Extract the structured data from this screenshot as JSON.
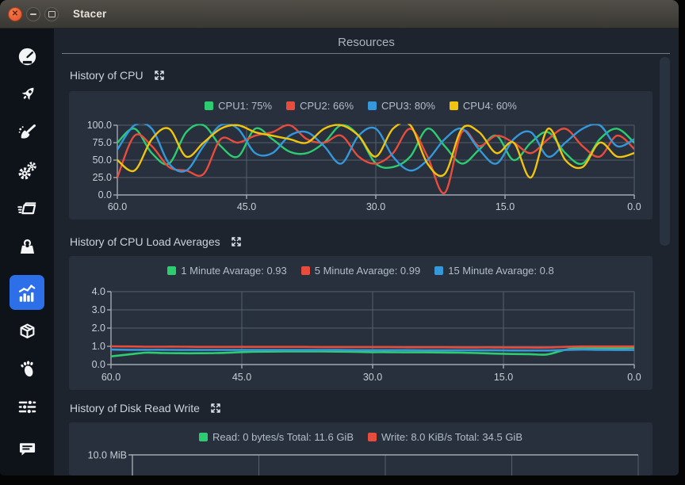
{
  "titlebar": {
    "title": "Stacer",
    "controls": [
      {
        "name": "close",
        "glyph": "✕"
      },
      {
        "name": "minimize"
      },
      {
        "name": "maximize"
      }
    ]
  },
  "sidebar": {
    "active": "resources",
    "items": [
      {
        "icon": "dashboard-gauge-icon"
      },
      {
        "icon": "startup-apps-rocket-icon"
      },
      {
        "icon": "system-cleaner-broom-icon"
      },
      {
        "icon": "services-gears-icon"
      },
      {
        "icon": "processes-icon"
      },
      {
        "icon": "uninstaller-icon"
      },
      {
        "icon": "resources-chart-icon"
      },
      {
        "icon": "package-box-icon"
      },
      {
        "icon": "gnome-settings-foot-icon"
      },
      {
        "icon": "settings-sliders-icon"
      },
      {
        "icon": "feedback-comment-icon"
      }
    ]
  },
  "header": {
    "title": "Resources"
  },
  "sections": [
    {
      "title": "History of CPU"
    },
    {
      "title": "History of CPU Load Averages"
    },
    {
      "title": "History of Disk Read Write"
    }
  ],
  "colors": {
    "accent": "#2c6fe9",
    "green": "#2ecc71",
    "red": "#e74c3c",
    "blue": "#3498db",
    "yellow": "#f1c40f"
  },
  "chart_data": [
    {
      "type": "line",
      "title": "History of CPU",
      "legend": [
        {
          "label": "CPU1: 75%",
          "color": "#2ecc71"
        },
        {
          "label": "CPU2: 66%",
          "color": "#e74c3c"
        },
        {
          "label": "CPU3: 80%",
          "color": "#3498db"
        },
        {
          "label": "CPU4: 60%",
          "color": "#f1c40f"
        }
      ],
      "xlim": [
        60,
        0
      ],
      "ylim": [
        0,
        100
      ],
      "x_tick_values": [
        60,
        45,
        30,
        15,
        0
      ],
      "x_tick_labels": [
        "60.0",
        "45.0",
        "30.0",
        "15.0",
        "0.0"
      ],
      "y_tick_values": [
        0,
        25,
        50,
        75,
        100
      ],
      "y_tick_labels": [
        "0.0",
        "25.0",
        "50.0",
        "75.0",
        "100.0"
      ],
      "x": [
        60,
        58,
        56,
        54,
        52,
        50,
        48,
        46,
        44,
        42,
        40,
        38,
        36,
        34,
        32,
        30,
        28,
        26,
        24,
        22,
        20,
        18,
        16,
        14,
        12,
        10,
        8,
        6,
        4,
        2,
        0
      ],
      "series": [
        {
          "name": "CPU1",
          "color": "#2ecc71",
          "values": [
            75,
            95,
            60,
            45,
            90,
            100,
            70,
            55,
            95,
            80,
            62,
            60,
            75,
            100,
            85,
            45,
            40,
            55,
            95,
            70,
            45,
            65,
            85,
            50,
            75,
            90,
            60,
            45,
            80,
            95,
            75
          ]
        },
        {
          "name": "CPU2",
          "color": "#e74c3c",
          "values": [
            25,
            85,
            70,
            40,
            35,
            30,
            80,
            75,
            85,
            90,
            100,
            80,
            75,
            85,
            55,
            45,
            60,
            95,
            55,
            3,
            90,
            70,
            85,
            75,
            60,
            80,
            95,
            70,
            55,
            85,
            66
          ]
        },
        {
          "name": "CPU3",
          "color": "#3498db",
          "values": [
            65,
            100,
            95,
            45,
            35,
            70,
            100,
            95,
            60,
            60,
            85,
            90,
            70,
            45,
            85,
            95,
            55,
            35,
            50,
            80,
            95,
            65,
            45,
            80,
            90,
            55,
            75,
            95,
            100,
            70,
            80
          ]
        },
        {
          "name": "CPU4",
          "color": "#f1c40f",
          "values": [
            50,
            35,
            80,
            95,
            55,
            75,
            95,
            100,
            90,
            85,
            80,
            75,
            95,
            100,
            85,
            55,
            95,
            100,
            45,
            30,
            95,
            90,
            60,
            75,
            25,
            95,
            50,
            40,
            75,
            55,
            60
          ]
        }
      ]
    },
    {
      "type": "line",
      "title": "History of CPU Load Averages",
      "legend": [
        {
          "label": "1 Minute Avarage: 0.93",
          "color": "#2ecc71"
        },
        {
          "label": "5 Minute Avarage: 0.99",
          "color": "#e74c3c"
        },
        {
          "label": "15 Minute Avarage: 0.8",
          "color": "#3498db"
        }
      ],
      "xlim": [
        60,
        0
      ],
      "ylim": [
        0,
        4
      ],
      "x_tick_values": [
        60,
        45,
        30,
        15,
        0
      ],
      "x_tick_labels": [
        "60.0",
        "45.0",
        "30.0",
        "15.0",
        "0.0"
      ],
      "y_tick_values": [
        0,
        1,
        2,
        3,
        4
      ],
      "y_tick_labels": [
        "0.0",
        "1.0",
        "2.0",
        "3.0",
        "4.0"
      ],
      "x": [
        60,
        58,
        56,
        54,
        52,
        50,
        48,
        46,
        44,
        42,
        40,
        38,
        36,
        34,
        32,
        30,
        28,
        26,
        24,
        22,
        20,
        18,
        16,
        14,
        12,
        10,
        8,
        6,
        4,
        2,
        0
      ],
      "series": [
        {
          "name": "1 Minute Avarage",
          "color": "#2ecc71",
          "values": [
            0.45,
            0.55,
            0.65,
            0.63,
            0.62,
            0.62,
            0.63,
            0.66,
            0.7,
            0.71,
            0.72,
            0.72,
            0.72,
            0.71,
            0.7,
            0.68,
            0.68,
            0.67,
            0.67,
            0.66,
            0.65,
            0.63,
            0.6,
            0.58,
            0.57,
            0.55,
            0.8,
            0.93,
            0.9,
            0.88,
            0.93
          ]
        },
        {
          "name": "15 Minute Avarage",
          "color": "#3498db",
          "values": [
            0.82,
            0.81,
            0.81,
            0.81,
            0.8,
            0.8,
            0.8,
            0.8,
            0.8,
            0.8,
            0.8,
            0.8,
            0.8,
            0.8,
            0.79,
            0.79,
            0.79,
            0.79,
            0.78,
            0.78,
            0.78,
            0.78,
            0.78,
            0.77,
            0.77,
            0.77,
            0.8,
            0.82,
            0.81,
            0.8,
            0.8
          ]
        },
        {
          "name": "5 Minute Avarage",
          "color": "#e74c3c",
          "values": [
            1.0,
            0.99,
            0.98,
            0.98,
            0.98,
            0.97,
            0.97,
            0.97,
            0.97,
            0.97,
            0.97,
            0.97,
            0.96,
            0.96,
            0.96,
            0.96,
            0.96,
            0.95,
            0.95,
            0.95,
            0.94,
            0.94,
            0.94,
            0.93,
            0.93,
            0.93,
            0.97,
            0.99,
            0.99,
            0.99,
            0.99
          ]
        }
      ]
    },
    {
      "type": "line",
      "title": "History of Disk Read Write",
      "legend": [
        {
          "label": "Read: 0 bytes/s Total: 11.6 GiB",
          "color": "#2ecc71"
        },
        {
          "label": "Write: 8.0 KiB/s Total: 34.5 GiB",
          "color": "#e74c3c"
        }
      ],
      "xlim": [
        60,
        0
      ],
      "x_tick_values": [
        60,
        45,
        30,
        15,
        0
      ],
      "y_tick_labels": [
        "10.0 MiB"
      ],
      "series": []
    }
  ]
}
